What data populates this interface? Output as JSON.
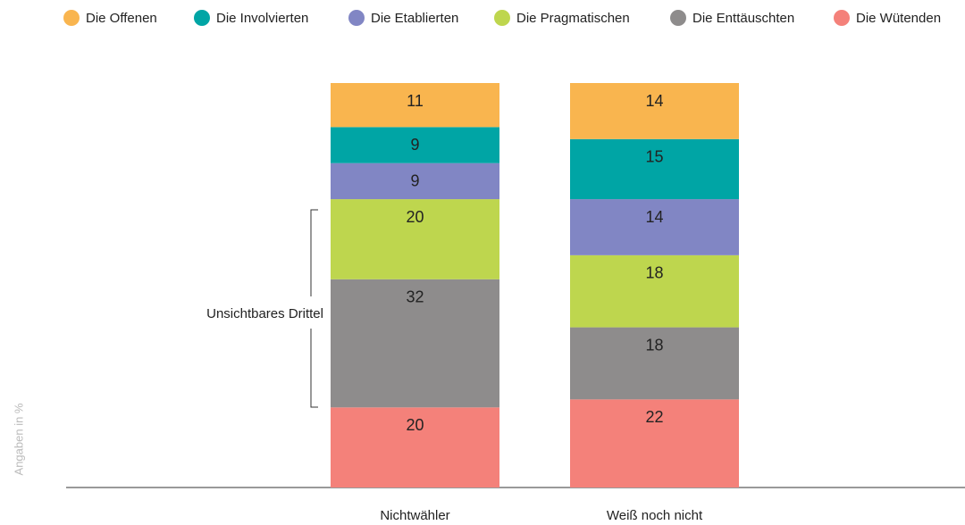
{
  "chart_data": {
    "type": "stacked_bar",
    "y_axis_label": "Angaben in %",
    "annotation": "Unsichtbares Drittel",
    "categories": [
      "Nichtwähler",
      "Weiß noch nicht"
    ],
    "series": [
      {
        "name": "Die Offenen",
        "color": "#f9b54f",
        "values": [
          11,
          14
        ]
      },
      {
        "name": "Die Involvierten",
        "color": "#00a5a5",
        "values": [
          9,
          15
        ]
      },
      {
        "name": "Die Etablierten",
        "color": "#8186c4",
        "values": [
          9,
          14
        ]
      },
      {
        "name": "Die Pragmatischen",
        "color": "#bed64e",
        "values": [
          20,
          18
        ]
      },
      {
        "name": "Die Enttäuschten",
        "color": "#8e8c8c",
        "values": [
          32,
          18
        ]
      },
      {
        "name": "Die Wütenden",
        "color": "#f4817a",
        "values": [
          20,
          22
        ]
      }
    ]
  }
}
